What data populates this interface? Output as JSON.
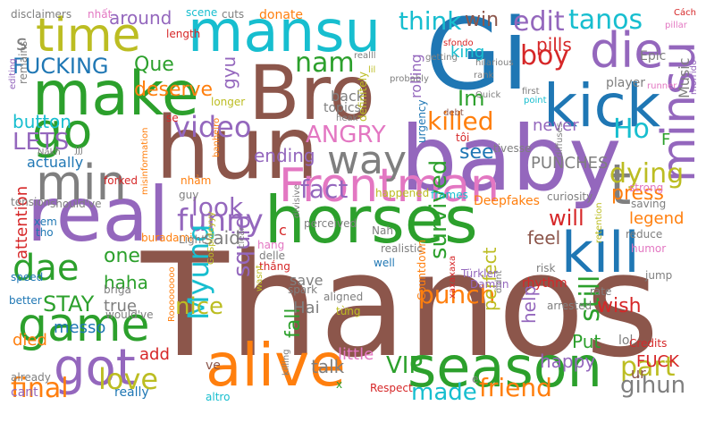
{
  "palette": {
    "brown": "#8c564b",
    "green": "#2ca02c",
    "blue": "#1f77b4",
    "purple": "#9467bd",
    "orange": "#ff7f0e",
    "pink": "#e377c2",
    "gray": "#7f7f7f",
    "olive": "#bcbd22",
    "cyan": "#17becf",
    "red": "#d62728",
    "background": "#ffffff"
  },
  "words": [
    {
      "text": "Thanos",
      "color": "brown"
    },
    {
      "text": "baby",
      "color": "purple"
    },
    {
      "text": "Gi",
      "color": "blue"
    },
    {
      "text": "hun",
      "color": "brown"
    },
    {
      "text": "mansu",
      "color": "cyan"
    },
    {
      "text": "Bro",
      "color": "brown"
    },
    {
      "text": "make",
      "color": "green"
    },
    {
      "text": "real",
      "color": "purple"
    },
    {
      "text": "horses",
      "color": "green"
    },
    {
      "text": "alive",
      "color": "orange"
    },
    {
      "text": "season",
      "color": "green"
    },
    {
      "text": "Frontman",
      "color": "pink"
    },
    {
      "text": "time",
      "color": "olive"
    },
    {
      "text": "kick",
      "color": "blue"
    },
    {
      "text": "die",
      "color": "purple"
    },
    {
      "text": "go",
      "color": "green"
    },
    {
      "text": "min",
      "color": "gray"
    },
    {
      "text": "minsu",
      "color": "purple"
    },
    {
      "text": "kill",
      "color": "blue"
    },
    {
      "text": "game",
      "color": "green"
    },
    {
      "text": "got",
      "color": "purple"
    },
    {
      "text": "dae",
      "color": "green"
    },
    {
      "text": "way",
      "color": "gray"
    },
    {
      "text": "t",
      "color": "gray"
    },
    {
      "text": "video",
      "color": "purple"
    },
    {
      "text": "funny",
      "color": "purple"
    },
    {
      "text": "Myung",
      "color": "cyan"
    },
    {
      "text": "killed",
      "color": "orange"
    },
    {
      "text": "ANGRY",
      "color": "pink"
    },
    {
      "text": "survived",
      "color": "green"
    },
    {
      "text": "fact",
      "color": "purple"
    },
    {
      "text": "dying",
      "color": "olive"
    },
    {
      "text": "look",
      "color": "purple"
    },
    {
      "text": "edit",
      "color": "purple"
    },
    {
      "text": "tanos",
      "color": "cyan"
    },
    {
      "text": "think",
      "color": "cyan"
    },
    {
      "text": "boy",
      "color": "red"
    },
    {
      "text": "Ho",
      "color": "cyan"
    },
    {
      "text": "nam",
      "color": "green"
    },
    {
      "text": "FUCKING",
      "color": "blue"
    },
    {
      "text": "deserve",
      "color": "orange"
    },
    {
      "text": "LETS",
      "color": "purple"
    },
    {
      "text": "button",
      "color": "cyan"
    },
    {
      "text": "still",
      "color": "green"
    },
    {
      "text": "part",
      "color": "olive"
    },
    {
      "text": "final",
      "color": "orange"
    },
    {
      "text": "love",
      "color": "olive"
    },
    {
      "text": "made",
      "color": "cyan"
    },
    {
      "text": "friend",
      "color": "orange"
    },
    {
      "text": "VIP",
      "color": "green"
    },
    {
      "text": "gihun",
      "color": "gray"
    },
    {
      "text": "punch",
      "color": "orange"
    },
    {
      "text": "fall",
      "color": "green"
    },
    {
      "text": "squid",
      "color": "purple"
    },
    {
      "text": "will",
      "color": "red"
    },
    {
      "text": "press",
      "color": "orange"
    },
    {
      "text": "wish",
      "color": "red"
    },
    {
      "text": "STAY",
      "color": "green"
    },
    {
      "text": "nice",
      "color": "olive"
    },
    {
      "text": "haha",
      "color": "green"
    },
    {
      "text": "one",
      "color": "green"
    },
    {
      "text": "said",
      "color": "gray"
    },
    {
      "text": "help",
      "color": "purple"
    },
    {
      "text": "perfect",
      "color": "olive"
    },
    {
      "text": "feel",
      "color": "brown"
    },
    {
      "text": "see",
      "color": "blue"
    },
    {
      "text": "Im",
      "color": "green"
    },
    {
      "text": "pills",
      "color": "red"
    },
    {
      "text": "win",
      "color": "brown"
    },
    {
      "text": "king",
      "color": "cyan"
    },
    {
      "text": "around",
      "color": "purple"
    },
    {
      "text": "Que",
      "color": "green"
    },
    {
      "text": "gyu",
      "color": "purple"
    },
    {
      "text": "ending",
      "color": "purple"
    },
    {
      "text": "never",
      "color": "purple"
    },
    {
      "text": "PUNCHES",
      "color": "gray"
    },
    {
      "text": "rolling",
      "color": "purple"
    },
    {
      "text": "Music",
      "color": "gray"
    },
    {
      "text": "FUCK",
      "color": "red"
    },
    {
      "text": "actually",
      "color": "blue"
    },
    {
      "text": "attention",
      "color": "red"
    },
    {
      "text": "messo",
      "color": "blue"
    },
    {
      "text": "true",
      "color": "gray"
    },
    {
      "text": "died",
      "color": "orange"
    },
    {
      "text": "add",
      "color": "red"
    },
    {
      "text": "talk",
      "color": "gray"
    },
    {
      "text": "little",
      "color": "pink"
    },
    {
      "text": "happy",
      "color": "purple"
    },
    {
      "text": "Put",
      "color": "green"
    },
    {
      "text": "ur",
      "color": "brown"
    },
    {
      "text": "lol",
      "color": "gray"
    },
    {
      "text": "Hai",
      "color": "gray"
    },
    {
      "text": "cant",
      "color": "purple"
    },
    {
      "text": "really",
      "color": "blue"
    },
    {
      "text": "ve",
      "color": "brown"
    },
    {
      "text": "back",
      "color": "gray"
    },
    {
      "text": "topics",
      "color": "gray"
    },
    {
      "text": "s",
      "color": "gray"
    },
    {
      "text": "F",
      "color": "green"
    },
    {
      "text": "legend",
      "color": "orange"
    },
    {
      "text": "Epic",
      "color": "gray"
    },
    {
      "text": "player",
      "color": "gray"
    },
    {
      "text": "Countdown",
      "color": "orange"
    },
    {
      "text": "Deepfakes",
      "color": "orange"
    },
    {
      "text": "save",
      "color": "gray"
    },
    {
      "text": "rhythm",
      "color": "red"
    },
    {
      "text": "Credits",
      "color": "red"
    },
    {
      "text": "disclaimers",
      "color": "gray"
    },
    {
      "text": "nhất",
      "color": "pink"
    },
    {
      "text": "scene",
      "color": "cyan"
    },
    {
      "text": "cuts",
      "color": "gray"
    },
    {
      "text": "donate",
      "color": "orange"
    },
    {
      "text": "length",
      "color": "red"
    },
    {
      "text": "remains",
      "color": "gray"
    },
    {
      "text": "editing",
      "color": "purple"
    },
    {
      "text": "longer",
      "color": "olive"
    },
    {
      "text": "se",
      "color": "red"
    },
    {
      "text": "forked",
      "color": "red"
    },
    {
      "text": "nhảm",
      "color": "orange"
    },
    {
      "text": "banheiro",
      "color": "orange"
    },
    {
      "text": "perceived",
      "color": "gray"
    },
    {
      "text": "definitely",
      "color": "olive"
    },
    {
      "text": "urgency",
      "color": "blue"
    },
    {
      "text": "tôi",
      "color": "red"
    },
    {
      "text": "tivesse",
      "color": "gray"
    },
    {
      "text": "happened",
      "color": "olive"
    },
    {
      "text": "frames",
      "color": "cyan"
    },
    {
      "text": "curiosity",
      "color": "gray"
    },
    {
      "text": "saving",
      "color": "gray"
    },
    {
      "text": "strong",
      "color": "pink"
    },
    {
      "text": "reduce",
      "color": "gray"
    },
    {
      "text": "humor",
      "color": "pink"
    },
    {
      "text": "guy",
      "color": "gray"
    },
    {
      "text": "hang",
      "color": "pink"
    },
    {
      "text": "delle",
      "color": "gray"
    },
    {
      "text": "thắng",
      "color": "red"
    },
    {
      "text": "buradami",
      "color": "orange"
    },
    {
      "text": "Light",
      "color": "gray"
    },
    {
      "text": "misinformation",
      "color": "orange"
    },
    {
      "text": "tension",
      "color": "gray"
    },
    {
      "text": "should've",
      "color": "gray"
    },
    {
      "text": "xem",
      "color": "blue"
    },
    {
      "text": "tho",
      "color": "blue"
    },
    {
      "text": "speed",
      "color": "blue"
    },
    {
      "text": "briga",
      "color": "gray"
    },
    {
      "text": "better",
      "color": "blue"
    },
    {
      "text": "would've",
      "color": "gray"
    },
    {
      "text": "GoSpideyyy",
      "color": "olive"
    },
    {
      "text": "wasnt",
      "color": "olive"
    },
    {
      "text": "clear",
      "color": "gray"
    },
    {
      "text": "divisive",
      "color": "gray"
    },
    {
      "text": "spark",
      "color": "gray"
    },
    {
      "text": "aligned",
      "color": "gray"
    },
    {
      "text": "từng",
      "color": "olive"
    },
    {
      "text": "well",
      "color": "blue"
    },
    {
      "text": "realistic",
      "color": "gray"
    },
    {
      "text": "Nah",
      "color": "gray"
    },
    {
      "text": "Türkler",
      "color": "purple"
    },
    {
      "text": "Damnn",
      "color": "purple"
    },
    {
      "text": "xaxaxaxa",
      "color": "red"
    },
    {
      "text": "didnt",
      "color": "gray"
    },
    {
      "text": "arrested",
      "color": "gray"
    },
    {
      "text": "risk",
      "color": "gray"
    },
    {
      "text": "rate",
      "color": "gray"
    },
    {
      "text": "jump",
      "color": "gray"
    },
    {
      "text": "retention",
      "color": "olive"
    },
    {
      "text": "Rooooooooo",
      "color": "orange"
    },
    {
      "text": "already",
      "color": "gray"
    },
    {
      "text": "altro",
      "color": "cyan"
    },
    {
      "text": "killing",
      "color": "gray"
    },
    {
      "text": "Respect",
      "color": "red"
    },
    {
      "text": "x",
      "color": "green"
    },
    {
      "text": "c",
      "color": "red"
    },
    {
      "text": "e",
      "color": "gray"
    },
    {
      "text": "sfondo",
      "color": "red"
    },
    {
      "text": "getting",
      "color": "gray"
    },
    {
      "text": "hilarious",
      "color": "gray"
    },
    {
      "text": "rank",
      "color": "gray"
    },
    {
      "text": "Quick",
      "color": "gray"
    },
    {
      "text": "first",
      "color": "gray"
    },
    {
      "text": "point",
      "color": "cyan"
    },
    {
      "text": "probably",
      "color": "gray"
    },
    {
      "text": "realll",
      "color": "gray"
    },
    {
      "text": "lil",
      "color": "olive"
    },
    {
      "text": "heak",
      "color": "gray"
    },
    {
      "text": "debt",
      "color": "brown"
    },
    {
      "text": "pillar",
      "color": "pink"
    },
    {
      "text": "Cách",
      "color": "red"
    },
    {
      "text": "runner",
      "color": "pink"
    },
    {
      "text": "morrido",
      "color": "purple"
    },
    {
      "text": "JJJ",
      "color": "gray"
    },
    {
      "text": "Nakh",
      "color": "gray"
    },
    {
      "text": "diffuses",
      "color": "gray"
    }
  ]
}
